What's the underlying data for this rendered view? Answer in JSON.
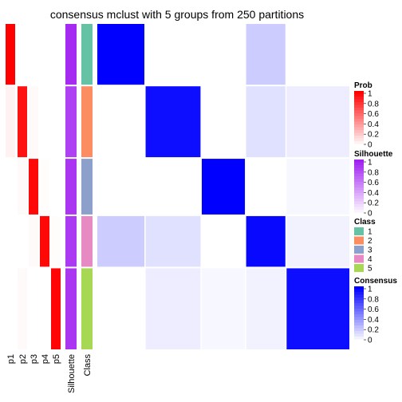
{
  "chart_data": {
    "type": "heatmap",
    "title": "consensus mclust with 5 groups from 250 partitions",
    "columns": [
      "p1",
      "p2",
      "p3",
      "p4",
      "p5",
      "Silhouette",
      "Class"
    ],
    "groups": [
      {
        "class": "1",
        "n": 12,
        "silhouette": 0.95,
        "prob": [
          1,
          0,
          0,
          0,
          0
        ]
      },
      {
        "class": "2",
        "n": 14,
        "silhouette": 0.85,
        "prob": [
          0.05,
          0.93,
          0.02,
          0,
          0
        ]
      },
      {
        "class": "3",
        "n": 11,
        "silhouette": 0.9,
        "prob": [
          0,
          0.02,
          0.97,
          0.01,
          0
        ]
      },
      {
        "class": "4",
        "n": 10,
        "silhouette": 0.88,
        "prob": [
          0,
          0,
          0.02,
          0.97,
          0.01
        ]
      },
      {
        "class": "5",
        "n": 16,
        "silhouette": 0.9,
        "prob": [
          0,
          0.02,
          0,
          0,
          0.98
        ]
      }
    ],
    "consensus_blocks": [
      [
        1,
        0,
        0,
        0.2,
        0
      ],
      [
        0,
        0.95,
        0,
        0.12,
        0.07
      ],
      [
        0,
        0,
        1,
        0,
        0.03
      ],
      [
        0.2,
        0.12,
        0,
        0.97,
        0.05
      ],
      [
        0,
        0.07,
        0.03,
        0.05,
        0.95
      ]
    ],
    "legends": {
      "prob": {
        "title": "Prob",
        "ticks": [
          "1",
          "0.8",
          "0.6",
          "0.4",
          "0.2",
          "0"
        ],
        "color_low": "#ffffff",
        "color_high": "#ff0000"
      },
      "silhouette": {
        "title": "Silhouette",
        "ticks": [
          "1",
          "0.8",
          "0.6",
          "0.4",
          "0.2",
          "0"
        ],
        "color_low": "#ffffff",
        "color_high": "#a020f0"
      },
      "class": {
        "title": "Class",
        "items": [
          {
            "label": "1",
            "color": "#66c2a5"
          },
          {
            "label": "2",
            "color": "#fc8d62"
          },
          {
            "label": "3",
            "color": "#8da0cb"
          },
          {
            "label": "4",
            "color": "#e78ac3"
          },
          {
            "label": "5",
            "color": "#a6d854"
          }
        ]
      },
      "consensus": {
        "title": "Consensus",
        "ticks": [
          "1",
          "0.8",
          "0.6",
          "0.4",
          "0.2",
          "0"
        ],
        "color_low": "#ffffff",
        "color_high": "#0000ff"
      }
    }
  }
}
